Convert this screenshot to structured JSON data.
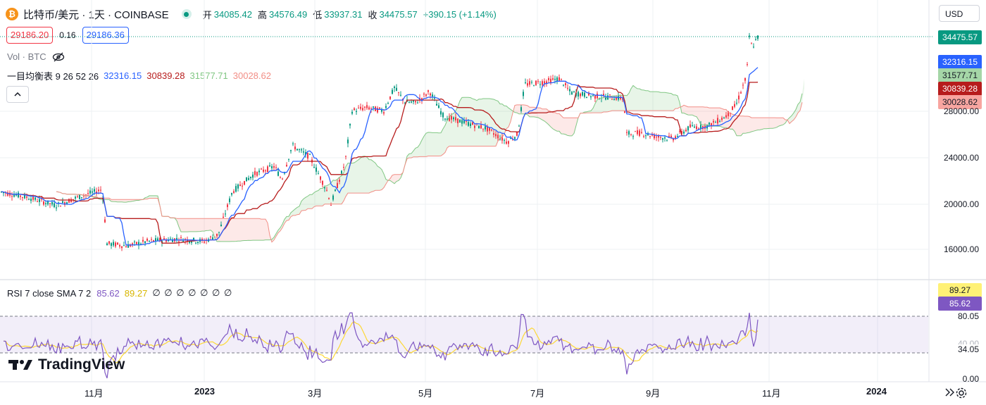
{
  "header": {
    "symbol_title": "比特币/美元 · 1天 · COINBASE",
    "ohlc": [
      {
        "label": "开",
        "value": "34085.42"
      },
      {
        "label": "高",
        "value": "34576.49"
      },
      {
        "label": "低",
        "value": "33937.31"
      },
      {
        "label": "收",
        "value": "34475.57"
      }
    ],
    "change": "+390.15 (+1.14%)",
    "currency": "USD"
  },
  "quote": {
    "bid": "29186.20",
    "spread": "0.16",
    "ask": "29186.36"
  },
  "volume": {
    "label": "Vol · BTC"
  },
  "ichimoku": {
    "label": "一目均衡表 9 26 52 26",
    "v1": "32316.15",
    "v2": "30839.28",
    "v3": "31577.71",
    "v4": "30028.62"
  },
  "price_axis": {
    "last_price": "34475.57",
    "tags": [
      "32316.15",
      "31577.71",
      "30839.28",
      "30028.62"
    ],
    "ticks": [
      "28000.00",
      "24000.00",
      "20000.00",
      "16000.00"
    ]
  },
  "rsi": {
    "label": "RSI 7 close SMA 7 2",
    "v1": "85.62",
    "v2": "89.27",
    "extra": "∅ ∅ ∅ ∅ ∅ ∅ ∅",
    "tag_sma": "89.27",
    "tag_rsi": "85.62",
    "ticks": [
      "80.05",
      "34.05",
      "0.00"
    ],
    "hidden_tick": "40.00"
  },
  "time_axis": [
    "11月",
    "2023",
    "3月",
    "5月",
    "7月",
    "9月",
    "11月",
    "2024"
  ],
  "logo": {
    "text": "TradingView"
  },
  "colors": {
    "bull": "#089981",
    "bear": "#f23645",
    "tenkan": "#2962ff",
    "kijun": "#b71c1c",
    "span_a": "#81c784",
    "span_b": "#f28e86",
    "rsi": "#7e57c2",
    "rsi_sma": "#fdd835",
    "last_price_bg": "#089981"
  }
}
